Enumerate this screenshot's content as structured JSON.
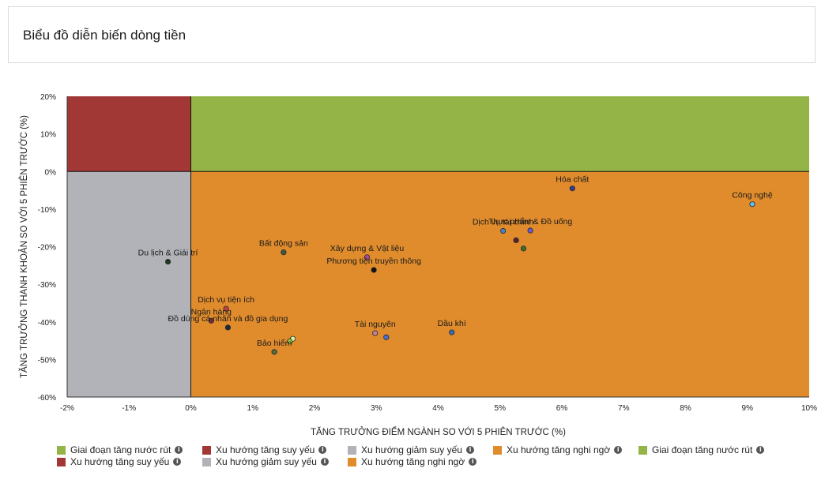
{
  "title": "Biểu đồ diễn biến dòng tiền",
  "colors": {
    "top_left": "#a13835",
    "top_right": "#94b447",
    "bottom_left": "#b1b3b8",
    "bottom_right": "#e08c2d"
  },
  "chart_data": {
    "type": "scatter",
    "title": "Biểu đồ diễn biến dòng tiền",
    "xlabel": "TĂNG TRƯỞNG ĐIỂM NGÀNH SO VỚI 5 PHIÊN TRƯỚC (%)",
    "ylabel": "TĂNG TRƯỞNG THANH KHOẢN SO VỚI 5 PHIÊN TRƯỚC (%)",
    "xlim": [
      -2,
      10
    ],
    "ylim": [
      -60,
      20
    ],
    "xticks": [
      -2,
      -1,
      0,
      1,
      2,
      3,
      4,
      5,
      6,
      7,
      8,
      9,
      10
    ],
    "yticks": [
      20,
      10,
      0,
      -10,
      -20,
      -30,
      -40,
      -50,
      -60
    ],
    "xtick_labels": [
      "-2%",
      "-1%",
      "0%",
      "1%",
      "2%",
      "3%",
      "4%",
      "5%",
      "6%",
      "7%",
      "8%",
      "9%",
      "10%"
    ],
    "ytick_labels": [
      "20%",
      "10%",
      "0%",
      "-10%",
      "-20%",
      "-30%",
      "-40%",
      "-50%",
      "-60%"
    ],
    "grid": false,
    "legend_position": "bottom",
    "points": [
      {
        "label": "Hóa chất",
        "x": 6.17,
        "y": -4.5,
        "color": "#3a3a8c"
      },
      {
        "label": "Công nghệ",
        "x": 9.08,
        "y": -8.7,
        "color": "#5bc0eb"
      },
      {
        "label": "Dịch vụ tài chính",
        "x": 5.05,
        "y": -15.8,
        "color": "#4a7fc0"
      },
      {
        "label": "Thực phẩm & Đồ uống",
        "x": 5.49,
        "y": -15.7,
        "color": "#6a5acd"
      },
      {
        "label": "",
        "x": 5.26,
        "y": -18.3,
        "color": "#5a1f2e"
      },
      {
        "label": "",
        "x": 5.38,
        "y": -20.5,
        "color": "#3f6b2e"
      },
      {
        "label": "Bất động sản",
        "x": 1.5,
        "y": -21.5,
        "color": "#3d5a3d"
      },
      {
        "label": "Du lịch & Giải trí",
        "x": -0.37,
        "y": -24.0,
        "color": "#1e3a1e"
      },
      {
        "label": "Xây dựng & Vật liệu",
        "x": 2.85,
        "y": -22.8,
        "color": "#a84c9c"
      },
      {
        "label": "Phương tiện truyền thông",
        "x": 2.96,
        "y": -26.2,
        "color": "#111111"
      },
      {
        "label": "Dịch vụ tiện ích",
        "x": 0.57,
        "y": -36.5,
        "color": "#c04040"
      },
      {
        "label": "Ngân hàng",
        "x": 0.33,
        "y": -39.7,
        "color": "#7a2a3a"
      },
      {
        "label": "Đồ dùng cá nhân và đồ gia dụng",
        "x": 0.6,
        "y": -41.5,
        "color": "#1c2b3c"
      },
      {
        "label": "Bảo hiểm",
        "x": 1.35,
        "y": -48.0,
        "color": "#556b3a"
      },
      {
        "label": "",
        "x": 1.65,
        "y": -44.5,
        "color": "#d8f0a0"
      },
      {
        "label": "",
        "x": 1.6,
        "y": -45.2,
        "color": "#a0c840"
      },
      {
        "label": "Tài nguyên",
        "x": 2.98,
        "y": -43.0,
        "color": "#c080a0"
      },
      {
        "label": "",
        "x": 3.16,
        "y": -44.1,
        "color": "#4a6fd0"
      },
      {
        "label": "Dầu khí",
        "x": 4.22,
        "y": -42.8,
        "color": "#3a6ab0"
      }
    ]
  },
  "legend": {
    "items": [
      {
        "label": "Giai đoạn tăng nước rút",
        "color": "#94b447"
      },
      {
        "label": "Xu hướng tăng suy yếu",
        "color": "#a13835"
      },
      {
        "label": "Xu hướng giảm suy yếu",
        "color": "#b1b3b8"
      },
      {
        "label": "Xu hướng tăng nghi ngờ",
        "color": "#e08c2d"
      },
      {
        "label": "Giai đoạn tăng nước rút",
        "color": "#94b447"
      },
      {
        "label": "Xu hướng tăng suy yếu",
        "color": "#a13835"
      },
      {
        "label": "Xu hướng giảm suy yếu",
        "color": "#b1b3b8"
      },
      {
        "label": "Xu hướng tăng nghi ngờ",
        "color": "#e08c2d"
      }
    ],
    "info_icon": "info-icon"
  }
}
